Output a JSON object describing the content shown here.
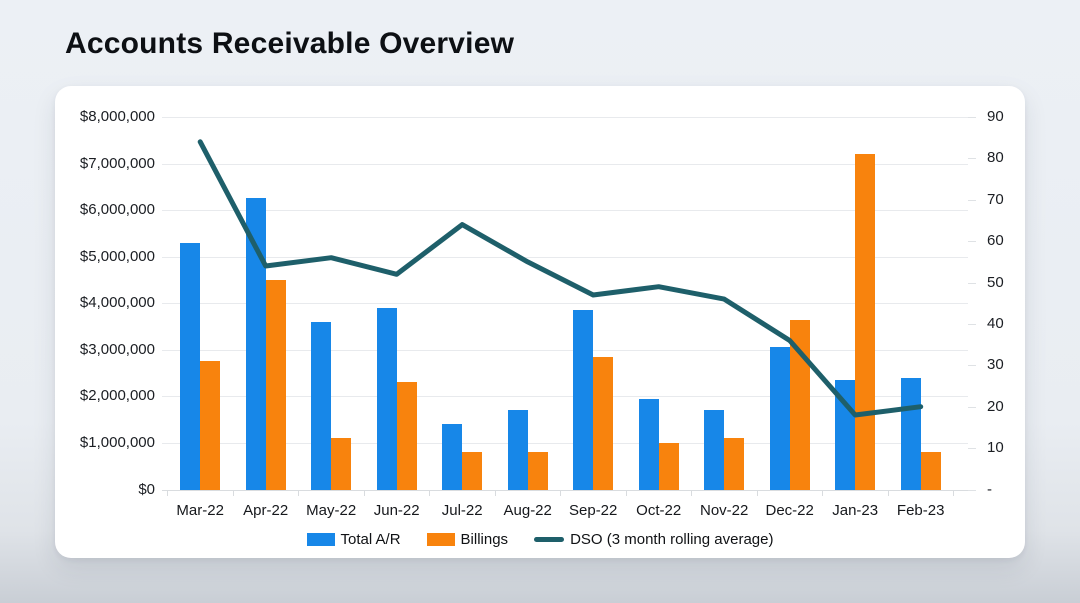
{
  "page": {
    "title": "Accounts Receivable Overview"
  },
  "chart_data": {
    "type": "bar",
    "subtype": "combo-bar-line",
    "title": "Accounts Receivable Overview",
    "categories": [
      "Mar-22",
      "Apr-22",
      "May-22",
      "Jun-22",
      "Jul-22",
      "Aug-22",
      "Sep-22",
      "Oct-22",
      "Nov-22",
      "Dec-22",
      "Jan-23",
      "Feb-23"
    ],
    "series": [
      {
        "name": "Total A/R",
        "type": "bar",
        "axis": "left",
        "color": "#1787e8",
        "values": [
          5300000,
          6250000,
          3600000,
          3900000,
          1400000,
          1700000,
          3850000,
          1950000,
          1700000,
          3050000,
          2350000,
          2400000
        ]
      },
      {
        "name": "Billings",
        "type": "bar",
        "axis": "left",
        "color": "#f8830d",
        "values": [
          2750000,
          4500000,
          1100000,
          2300000,
          800000,
          800000,
          2850000,
          1000000,
          1100000,
          3650000,
          7200000,
          800000
        ]
      },
      {
        "name": "DSO (3 month rolling average)",
        "type": "line",
        "axis": "right",
        "color": "#1e5f6a",
        "values": [
          84,
          54,
          56,
          52,
          64,
          55,
          47,
          49,
          46,
          36,
          18,
          20
        ]
      }
    ],
    "y_left": {
      "min": 0,
      "max": 8000000,
      "ticks": [
        {
          "label": "$8,000,000",
          "value": 8000000
        },
        {
          "label": "$7,000,000",
          "value": 7000000
        },
        {
          "label": "$6,000,000",
          "value": 6000000
        },
        {
          "label": "$5,000,000",
          "value": 5000000
        },
        {
          "label": "$4,000,000",
          "value": 4000000
        },
        {
          "label": "$3,000,000",
          "value": 3000000
        },
        {
          "label": "$2,000,000",
          "value": 2000000
        },
        {
          "label": "$1,000,000",
          "value": 1000000
        },
        {
          "label": "$0",
          "value": 0
        }
      ]
    },
    "y_right": {
      "min": 0,
      "max": 90,
      "ticks": [
        {
          "label": "90",
          "value": 90
        },
        {
          "label": "80",
          "value": 80
        },
        {
          "label": "70",
          "value": 70
        },
        {
          "label": "60",
          "value": 60
        },
        {
          "label": "50",
          "value": 50
        },
        {
          "label": "40",
          "value": 40
        },
        {
          "label": "30",
          "value": 30
        },
        {
          "label": "20",
          "value": 20
        },
        {
          "label": "10",
          "value": 10
        },
        {
          "label": "-",
          "value": 0
        }
      ]
    },
    "grid": true,
    "legend_position": "bottom"
  },
  "colors": {
    "total_ar": "#1787e8",
    "billings": "#f8830d",
    "dso_line": "#1e5f6a",
    "card_bg": "#ffffff",
    "page_bg": "#e9edf2"
  }
}
